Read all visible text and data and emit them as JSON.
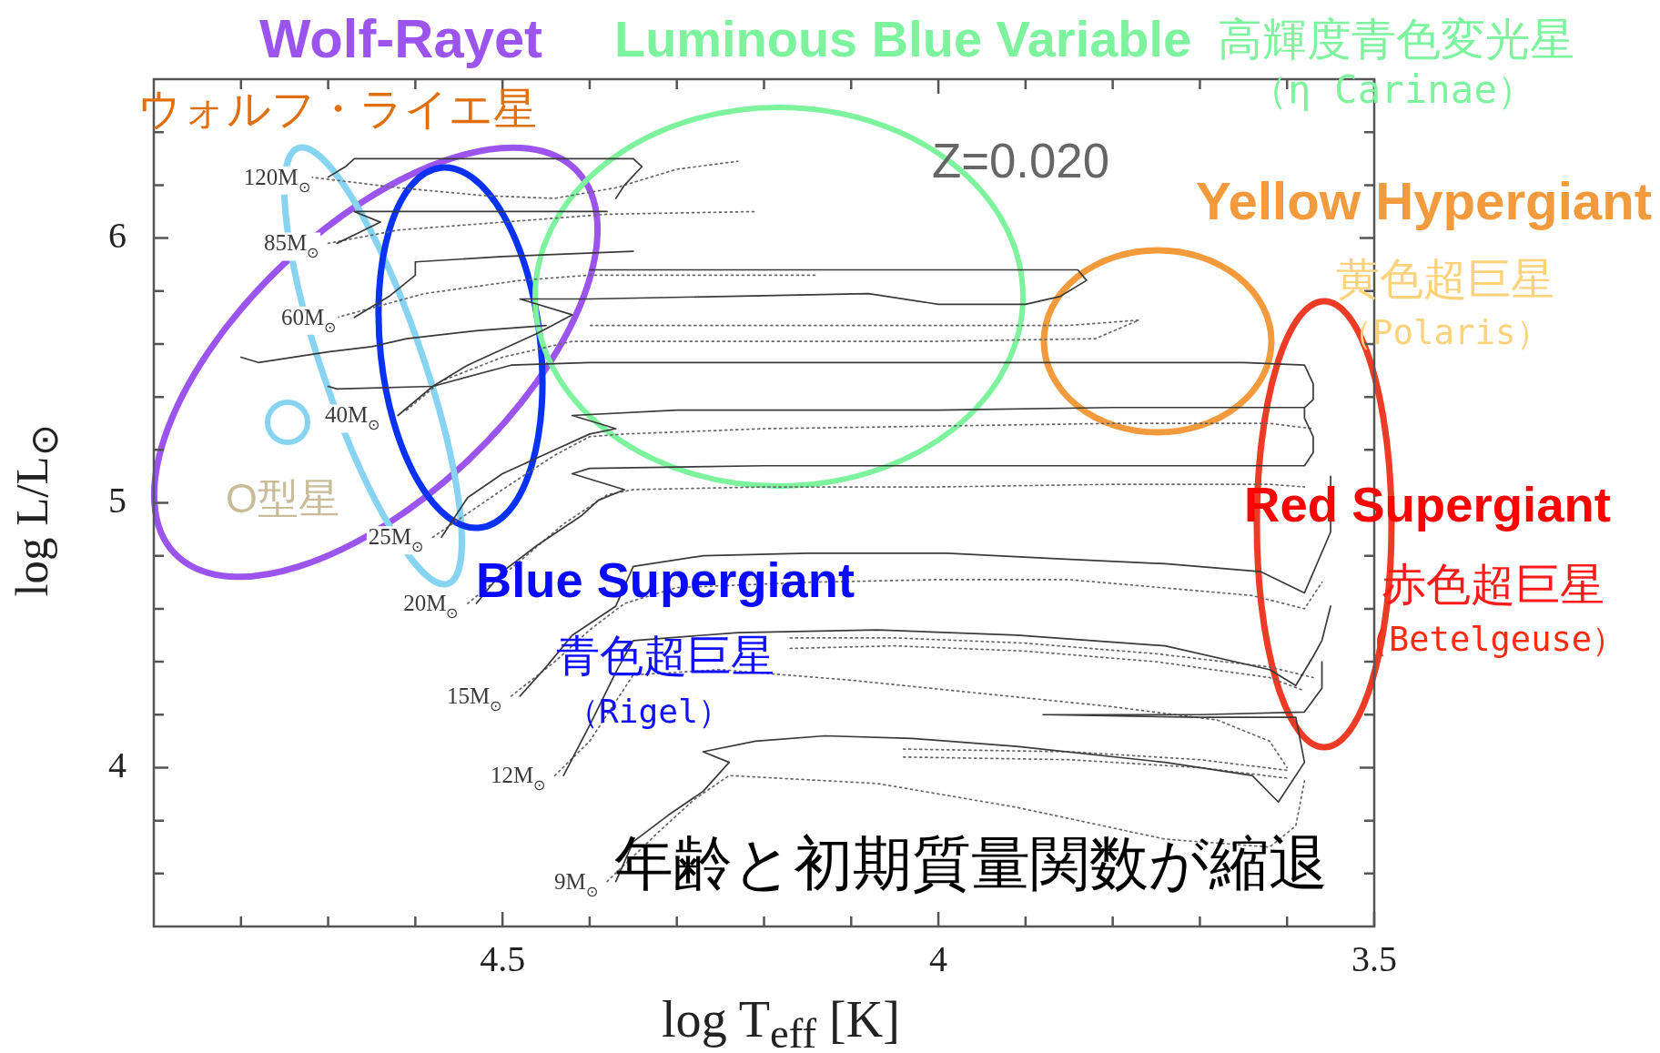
{
  "chart_data": {
    "type": "line",
    "xlabel": "log T$_{eff}$ [K]",
    "ylabel": "log L/L$_{⊙}$",
    "xlim": [
      4.9,
      3.5
    ],
    "ylim": [
      3.4,
      6.6
    ],
    "xticks": [
      {
        "value": 4.8,
        "label": null
      },
      {
        "value": 4.7,
        "label": null
      },
      {
        "value": 4.6,
        "label": null
      },
      4.5,
      {
        "value": 4.4,
        "label": null
      },
      {
        "value": 4.3,
        "label": null
      },
      {
        "value": 4.2,
        "label": null
      },
      {
        "value": 4.1,
        "label": null
      },
      4,
      {
        "value": 3.9,
        "label": null
      },
      {
        "value": 3.8,
        "label": null
      },
      {
        "value": 3.7,
        "label": null
      },
      {
        "value": 3.6,
        "label": null
      },
      3.5
    ],
    "yticks": [
      {
        "value": 3.6,
        "label": null
      },
      {
        "value": 3.8,
        "label": null
      },
      4,
      {
        "value": 4.2,
        "label": null
      },
      {
        "value": 4.4,
        "label": null
      },
      {
        "value": 4.6,
        "label": null
      },
      {
        "value": 4.8,
        "label": null
      },
      5,
      {
        "value": 5.2,
        "label": null
      },
      {
        "value": 5.4,
        "label": null
      },
      {
        "value": 5.6,
        "label": null
      },
      {
        "value": 5.8,
        "label": null
      },
      6,
      {
        "value": 6.2,
        "label": null
      },
      {
        "value": 6.4,
        "label": null
      }
    ],
    "series": [
      {
        "name": "120M$_{⊙}$",
        "color": "#3a3a3a",
        "line_style": "solid",
        "x": [
          4.7,
          4.68,
          4.67,
          4.5,
          4.35,
          4.34,
          4.36,
          4.37
        ],
        "values": [
          6.23,
          6.27,
          6.3,
          6.3,
          6.3,
          6.27,
          6.2,
          6.15
        ]
      },
      {
        "name": "85M$_{⊙}$",
        "color": "#3a3a3a",
        "line_style": "solid",
        "x": [
          4.69,
          4.64,
          4.67,
          4.5,
          4.38
        ],
        "values": [
          5.98,
          6.06,
          6.1,
          6.1,
          6.1
        ]
      },
      {
        "name": "60M$_{⊙}$",
        "color": "#3a3a3a",
        "line_style": "solid",
        "x": [
          4.67,
          4.63,
          4.6,
          4.6,
          4.5,
          4.35
        ],
        "values": [
          5.7,
          5.78,
          5.86,
          5.91,
          5.93,
          5.95
        ]
      },
      {
        "name": "40M$_{⊙}$",
        "color": "#3a3a3a",
        "line_style": "solid",
        "x": [
          4.62,
          4.58,
          4.54,
          4.46,
          4.42,
          4.48,
          4.4,
          4.24,
          4.08,
          4.0,
          3.9,
          3.86,
          3.83,
          3.84,
          4.0,
          4.2,
          4.4
        ],
        "values": [
          5.33,
          5.44,
          5.52,
          5.64,
          5.71,
          5.77,
          5.77,
          5.78,
          5.79,
          5.75,
          5.75,
          5.78,
          5.84,
          5.88,
          5.88,
          5.88,
          5.88
        ]
      },
      {
        "name": "25M$_{⊙}$",
        "color": "#3a3a3a",
        "line_style": "solid",
        "x": [
          4.57,
          4.54,
          4.5,
          4.44,
          4.4,
          4.37,
          4.42,
          4.3,
          4.0,
          3.8,
          3.62,
          3.58,
          3.57,
          3.57,
          3.58,
          3.65,
          3.9,
          4.2,
          4.4,
          4.49,
          4.58,
          4.69,
          4.7
        ],
        "values": [
          4.87,
          5.02,
          5.11,
          5.2,
          5.26,
          5.28,
          5.33,
          5.35,
          5.35,
          5.36,
          5.36,
          5.36,
          5.39,
          5.45,
          5.52,
          5.53,
          5.53,
          5.53,
          5.53,
          5.52,
          5.44,
          5.43,
          5.44
        ]
      },
      {
        "name": "20M$_{⊙}$",
        "color": "#3a3a3a",
        "line_style": "solid",
        "x": [
          4.53,
          4.5,
          4.46,
          4.41,
          4.39,
          4.36,
          4.42,
          4.4,
          4.2,
          4.0,
          3.8,
          3.62,
          3.58,
          3.57,
          3.57,
          3.58,
          3.58
        ],
        "values": [
          4.62,
          4.74,
          4.84,
          4.95,
          5.01,
          5.05,
          5.11,
          5.13,
          5.14,
          5.14,
          5.14,
          5.14,
          5.14,
          5.19,
          5.25,
          5.32,
          5.36
        ]
      },
      {
        "name": "15M$_{⊙}$",
        "color": "#3a3a3a",
        "line_style": "solid",
        "x": [
          4.48,
          4.45,
          4.42,
          4.37,
          4.35,
          4.27,
          4.15,
          3.99,
          3.87,
          3.74,
          3.63,
          3.58,
          3.55,
          3.55
        ],
        "values": [
          4.27,
          4.38,
          4.5,
          4.61,
          4.76,
          4.8,
          4.81,
          4.81,
          4.79,
          4.77,
          4.74,
          4.66,
          4.89,
          5.1
        ]
      },
      {
        "name": "12M$_{⊙}$",
        "color": "#3a3a3a",
        "line_style": "solid",
        "x": [
          4.43,
          4.4,
          4.37,
          4.35,
          4.23,
          4.07,
          3.91,
          3.74,
          3.62,
          3.59,
          3.57,
          3.56,
          3.55
        ],
        "values": [
          3.97,
          4.16,
          4.36,
          4.48,
          4.51,
          4.52,
          4.5,
          4.46,
          4.37,
          4.31,
          4.42,
          4.48,
          4.61
        ]
      },
      {
        "name": "9M$_{⊙}$",
        "color": "#3a3a3a",
        "line_style": "solid",
        "x": [
          4.37,
          4.35,
          4.31,
          4.27,
          4.24,
          4.27,
          4.21,
          4.13,
          4.03,
          3.91,
          3.74,
          3.64,
          3.61,
          3.58,
          3.59,
          3.7,
          3.88,
          3.7,
          3.58,
          3.56,
          3.56
        ],
        "values": [
          3.57,
          3.72,
          3.82,
          3.91,
          4.02,
          4.06,
          4.1,
          4.12,
          4.11,
          4.08,
          4.02,
          3.97,
          3.87,
          4.02,
          4.19,
          4.19,
          4.2,
          4.2,
          4.21,
          4.3,
          4.4
        ]
      },
      {
        "color": "#3a3a3a",
        "line_style": "solid",
        "x": [
          4.8,
          4.78,
          4.7,
          4.65,
          4.61,
          4.53,
          4.45
        ],
        "values": [
          5.55,
          5.53,
          5.57,
          5.59,
          5.62,
          5.65,
          5.67
        ]
      },
      {
        "color": "#666666",
        "line_style": "dotted",
        "x": [
          4.72,
          4.62,
          4.52,
          4.44,
          4.37,
          4.3,
          4.23
        ],
        "values": [
          6.23,
          6.19,
          6.16,
          6.15,
          6.19,
          6.26,
          6.29
        ]
      },
      {
        "color": "#666666",
        "line_style": "dotted",
        "x": [
          4.7,
          4.62,
          4.5,
          4.38,
          4.21
        ],
        "values": [
          5.98,
          6.03,
          6.06,
          6.09,
          6.1
        ]
      },
      {
        "color": "#666666",
        "line_style": "dotted",
        "x": [
          4.69,
          4.59,
          4.48,
          4.4,
          4.3,
          4.14
        ],
        "values": [
          5.7,
          5.79,
          5.84,
          5.86,
          5.86,
          5.86
        ]
      },
      {
        "color": "#666666",
        "line_style": "dotted",
        "x": [
          4.61,
          4.57,
          4.5,
          4.42,
          4.2,
          4.0,
          3.82,
          3.77,
          3.85,
          4.0,
          4.2,
          4.4
        ],
        "values": [
          5.35,
          5.46,
          5.55,
          5.61,
          5.61,
          5.61,
          5.62,
          5.69,
          5.67,
          5.67,
          5.67,
          5.67
        ]
      },
      {
        "color": "#666666",
        "line_style": "dotted",
        "x": [
          4.58,
          4.5,
          4.44,
          4.4,
          4.36,
          4.2,
          4.0,
          3.8,
          3.62,
          3.57
        ],
        "values": [
          4.87,
          5.05,
          5.18,
          5.25,
          5.26,
          5.28,
          5.29,
          5.3,
          5.3,
          5.28
        ]
      },
      {
        "color": "#666666",
        "line_style": "dotted",
        "x": [
          4.54,
          4.48,
          4.43,
          4.38,
          4.35,
          4.2,
          4.0,
          3.8,
          3.62,
          3.58
        ],
        "values": [
          4.62,
          4.78,
          4.92,
          5.03,
          5.05,
          5.06,
          5.06,
          5.07,
          5.07,
          5.06
        ]
      },
      {
        "color": "#666666",
        "line_style": "dotted",
        "x": [
          4.49,
          4.44,
          4.4,
          4.36,
          4.3,
          4.15,
          4.0,
          3.85,
          3.64,
          3.58,
          3.56
        ],
        "values": [
          4.27,
          4.4,
          4.52,
          4.62,
          4.68,
          4.7,
          4.71,
          4.71,
          4.65,
          4.6,
          4.7
        ]
      },
      {
        "color": "#666666",
        "line_style": "dotted",
        "x": [
          4.44,
          4.4,
          4.37,
          4.35,
          4.25,
          4.1,
          3.95,
          3.8,
          3.68,
          3.62,
          3.6
        ],
        "values": [
          3.97,
          4.1,
          4.25,
          4.35,
          4.37,
          4.33,
          4.28,
          4.23,
          4.18,
          4.1,
          4.0
        ]
      },
      {
        "color": "#666666",
        "line_style": "dotted",
        "x": [
          4.38,
          4.32,
          4.28,
          4.24,
          4.07,
          3.91,
          3.74,
          3.62,
          3.59,
          3.58
        ],
        "values": [
          3.57,
          3.76,
          3.88,
          3.97,
          3.94,
          3.85,
          3.73,
          3.7,
          3.78,
          3.95
        ]
      },
      {
        "color": "#666666",
        "line_style": "dotted",
        "x": [
          4.17,
          4.05,
          3.9,
          3.75,
          3.62,
          3.57
        ],
        "values": [
          4.49,
          4.49,
          4.47,
          4.43,
          4.38,
          4.34
        ]
      },
      {
        "color": "#666666",
        "line_style": "dotted",
        "x": [
          4.17,
          4.05,
          3.9,
          3.75,
          3.62,
          3.58
        ],
        "values": [
          4.45,
          4.46,
          4.44,
          4.4,
          4.34,
          4.29
        ]
      },
      {
        "color": "#666666",
        "line_style": "dotted",
        "x": [
          4.04,
          3.85,
          3.7,
          3.6
        ],
        "values": [
          4.07,
          4.06,
          4.03,
          3.99
        ]
      },
      {
        "color": "#666666",
        "line_style": "dotted",
        "x": [
          4.04,
          3.85,
          3.7,
          3.6
        ],
        "values": [
          4.04,
          4.03,
          4.0,
          3.96
        ]
      }
    ],
    "annotations": [
      "Wolf-Rayet",
      "ウォルフ・ライエ星",
      "Luminous Blue Variable",
      "高輝度青色変光星",
      "（η Carinae）",
      "Z=0.020",
      "Yellow Hypergiant",
      "黄色超巨星",
      "（Polaris）",
      "Red Supergiant",
      "赤色超巨星",
      "（Betelgeuse）",
      "O型星",
      "Blue Supergiant",
      "青色超巨星",
      "（Rigel）",
      "年齢と初期質量関数が縮退"
    ]
  }
}
